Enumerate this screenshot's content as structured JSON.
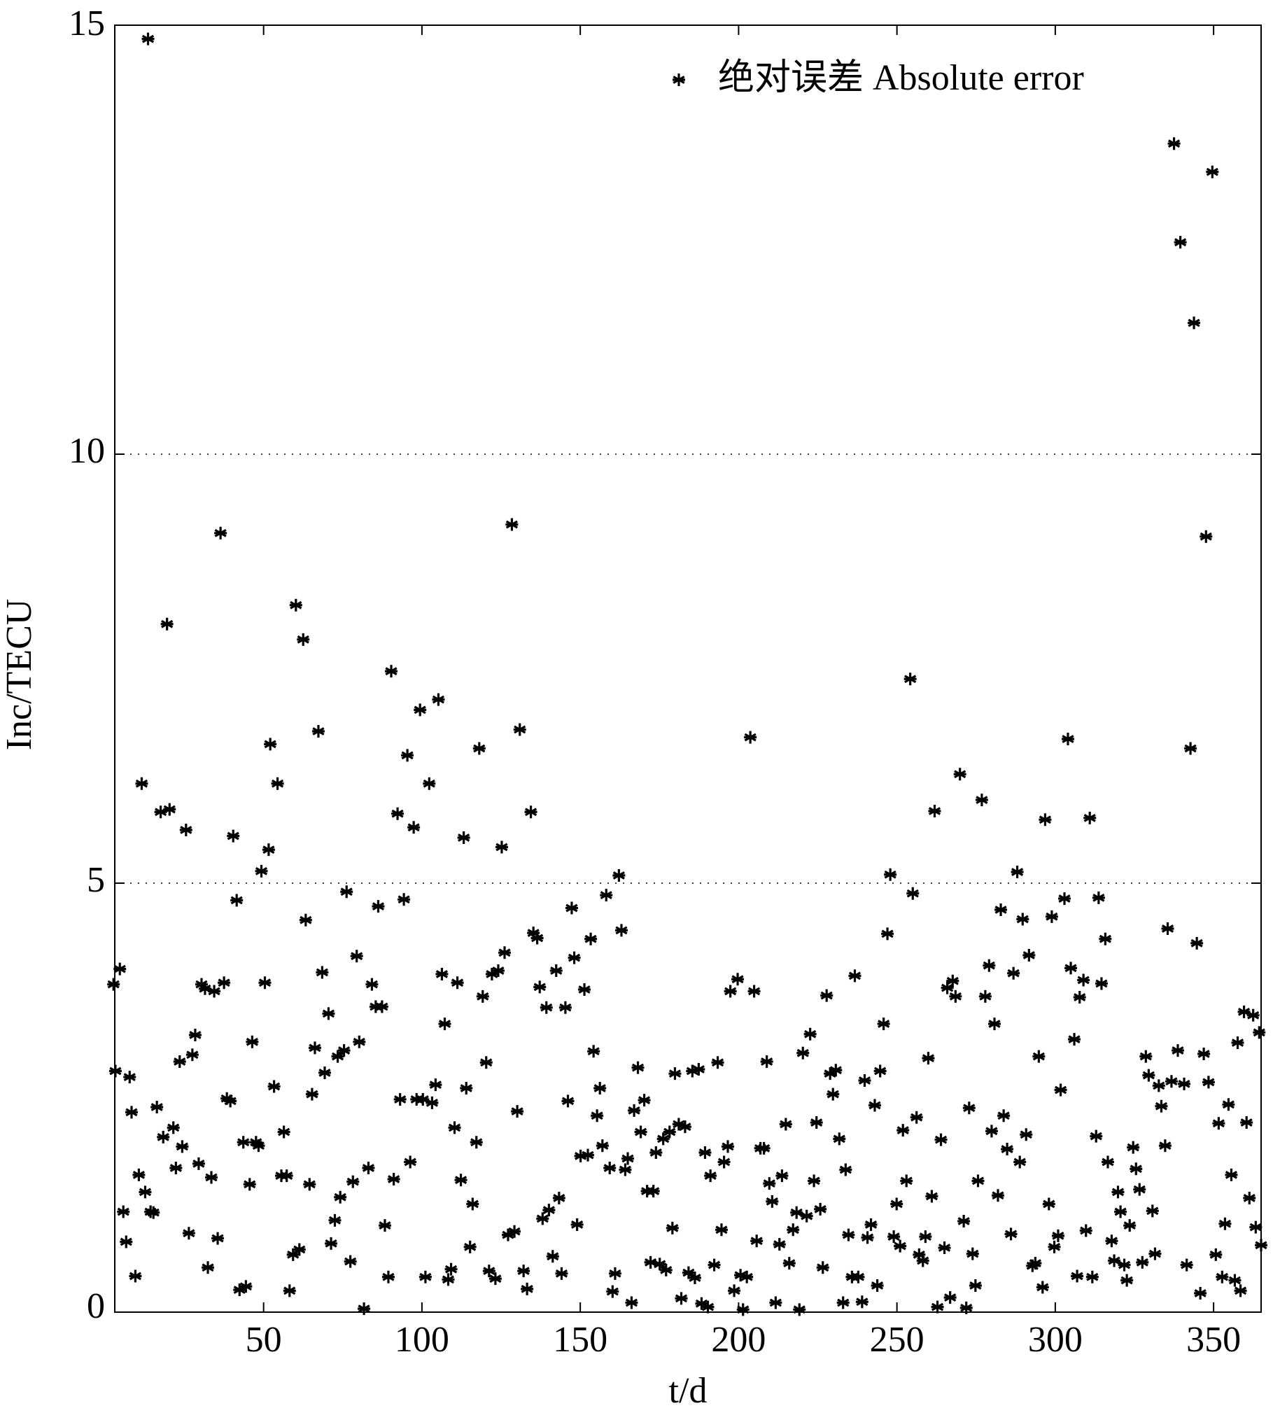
{
  "chart_data": {
    "type": "scatter",
    "x_label": "t/d",
    "y_label": "Inc/TECU",
    "xlim": [
      3,
      365
    ],
    "ylim": [
      0,
      15
    ],
    "xticks": [
      50,
      100,
      150,
      200,
      250,
      300,
      350
    ],
    "yticks": [
      0,
      5,
      10,
      15
    ],
    "grid": "y",
    "legend": "upper right",
    "x": [
      2.6,
      4.6,
      3.2,
      7.7,
      5.7,
      6.6,
      8.3,
      9.5,
      10.6,
      11.5,
      12.6,
      14.3,
      15.2,
      13.5,
      16.3,
      17.5,
      18.3,
      19.5,
      20.3,
      21.5,
      22.3,
      23.5,
      24.3,
      25.5,
      26.4,
      27.5,
      28.4,
      29.5,
      30.4,
      31.5,
      32.4,
      33.5,
      34.4,
      35.5,
      36.4,
      37.5,
      38.4,
      39.5,
      40.4,
      41.5,
      42.4,
      43.6,
      44.4,
      45.6,
      46.4,
      47.6,
      48.4,
      49.3,
      50.4,
      51.6,
      52.1,
      53.3,
      54.4,
      55.6,
      56.4,
      57.3,
      58.2,
      59.3,
      60.2,
      61.3,
      62.5,
      63.3,
      64.5,
      65.3,
      66.2,
      67.3,
      68.5,
      69.3,
      70.5,
      71.3,
      72.5,
      73.4,
      74.2,
      75.4,
      76.2,
      77.4,
      78.2,
      79.4,
      80.2,
      81.7,
      83.1,
      84.2,
      85.4,
      86.2,
      87.4,
      88.3,
      89.4,
      90.3,
      91.1,
      92.3,
      93.1,
      94.3,
      95.4,
      96.3,
      97.4,
      98.3,
      99.4,
      100.3,
      101.1,
      102.3,
      103.2,
      104.3,
      105.2,
      106.3,
      107.2,
      108.3,
      109.2,
      110.3,
      111.2,
      112.3,
      113.2,
      114.0,
      115.2,
      116.0,
      117.2,
      118.1,
      119.2,
      120.3,
      121.2,
      122.1,
      123.2,
      124.1,
      125.2,
      126.1,
      127.2,
      128.4,
      129.2,
      130.1,
      130.9,
      132.1,
      133.2,
      134.4,
      135.2,
      136.4,
      137.2,
      138.1,
      139.3,
      140.1,
      141.3,
      142.4,
      143.3,
      144.1,
      145.3,
      146.1,
      147.3,
      148.1,
      149.0,
      150.1,
      151.3,
      152.4,
      153.3,
      154.2,
      155.3,
      156.2,
      157.0,
      158.2,
      159.3,
      160.2,
      161.0,
      162.2,
      163.0,
      164.2,
      165.0,
      166.2,
      167.0,
      168.2,
      169.1,
      170.2,
      171.1,
      172.2,
      173.1,
      173.9,
      175.1,
      176.2,
      177.1,
      178.2,
      179.1,
      179.9,
      181.1,
      181.9,
      183.1,
      184.2,
      185.4,
      186.2,
      187.4,
      188.3,
      189.4,
      190.3,
      191.1,
      192.3,
      193.4,
      194.6,
      195.4,
      196.6,
      197.4,
      198.6,
      199.7,
      200.6,
      201.4,
      202.6,
      203.7,
      204.9,
      205.7,
      206.9,
      208.0,
      208.9,
      209.7,
      210.6,
      211.7,
      212.9,
      213.7,
      214.9,
      216.0,
      217.2,
      218.3,
      219.2,
      220.3,
      221.5,
      222.6,
      223.8,
      224.6,
      225.8,
      226.6,
      227.8,
      228.9,
      229.8,
      230.7,
      231.8,
      233.0,
      233.8,
      234.7,
      235.8,
      236.7,
      237.8,
      239.0,
      239.8,
      240.7,
      241.8,
      243.0,
      243.8,
      244.7,
      245.8,
      247.0,
      247.9,
      249.0,
      249.9,
      251.0,
      251.9,
      253.0,
      254.2,
      255.0,
      256.2,
      257.0,
      258.2,
      259.0,
      259.9,
      261.0,
      261.9,
      262.8,
      263.9,
      265.0,
      265.9,
      266.8,
      267.6,
      268.5,
      269.9,
      271.1,
      271.9,
      272.8,
      273.9,
      274.8,
      275.6,
      276.8,
      277.9,
      279.1,
      279.9,
      280.8,
      281.9,
      282.8,
      283.7,
      284.8,
      286.0,
      286.8,
      288.0,
      288.8,
      289.7,
      290.8,
      291.7,
      292.8,
      293.7,
      294.8,
      296.0,
      296.8,
      298.0,
      298.9,
      299.7,
      300.9,
      301.7,
      302.9,
      304.0,
      304.9,
      306.0,
      306.9,
      307.7,
      308.9,
      309.7,
      310.9,
      311.7,
      312.9,
      313.7,
      314.6,
      315.8,
      316.6,
      317.8,
      318.6,
      319.8,
      320.6,
      321.8,
      322.6,
      323.5,
      324.6,
      325.5,
      326.6,
      327.5,
      328.6,
      329.5,
      330.7,
      331.5,
      332.7,
      333.5,
      334.7,
      335.5,
      336.7,
      337.5,
      338.7,
      339.5,
      340.7,
      341.5,
      342.7,
      343.8,
      344.7,
      345.8,
      346.9,
      347.6,
      348.4,
      349.6,
      350.7,
      351.6,
      352.7,
      353.6,
      354.7,
      355.6,
      356.7,
      357.6,
      358.5,
      359.6,
      360.4,
      361.3,
      362.5,
      363.3,
      364.4,
      365.0
    ],
    "series": [
      {
        "name": "绝对误差 Absolute error",
        "color": "#000000",
        "values": [
          3.82,
          4.0,
          2.81,
          2.74,
          1.17,
          0.82,
          2.33,
          0.42,
          1.6,
          6.16,
          1.4,
          1.17,
          1.16,
          14.84,
          2.39,
          5.83,
          2.04,
          8.02,
          5.86,
          2.15,
          1.68,
          2.92,
          1.93,
          5.62,
          0.92,
          3.0,
          3.23,
          1.73,
          3.82,
          3.77,
          0.52,
          1.57,
          3.74,
          0.86,
          9.08,
          3.84,
          2.49,
          2.46,
          5.55,
          4.8,
          0.26,
          1.98,
          0.3,
          1.49,
          3.15,
          1.98,
          1.94,
          5.14,
          3.84,
          5.39,
          6.62,
          2.63,
          6.16,
          1.59,
          2.1,
          1.59,
          0.25,
          0.67,
          8.24,
          0.73,
          7.84,
          4.57,
          1.49,
          2.54,
          3.08,
          6.77,
          3.96,
          2.79,
          3.48,
          0.8,
          1.07,
          2.98,
          1.34,
          3.05,
          4.9,
          0.59,
          1.52,
          4.15,
          3.15,
          0.04,
          1.68,
          3.82,
          3.56,
          4.73,
          3.56,
          1.01,
          0.41,
          7.47,
          1.55,
          5.81,
          2.48,
          4.81,
          6.49,
          1.75,
          5.65,
          2.48,
          7.02,
          2.48,
          0.41,
          6.16,
          2.44,
          2.65,
          7.14,
          3.94,
          3.36,
          0.38,
          0.5,
          2.15,
          3.84,
          1.54,
          5.53,
          2.61,
          0.76,
          1.26,
          1.98,
          6.57,
          3.68,
          2.91,
          0.48,
          3.94,
          0.39,
          3.98,
          5.42,
          4.19,
          0.9,
          9.18,
          0.94,
          2.34,
          6.79,
          0.48,
          0.27,
          5.83,
          4.42,
          4.36,
          3.79,
          1.09,
          3.55,
          1.19,
          0.65,
          3.98,
          1.33,
          0.45,
          3.55,
          2.46,
          4.71,
          4.13,
          1.02,
          1.82,
          3.76,
          1.83,
          4.35,
          3.04,
          2.29,
          2.61,
          1.94,
          4.86,
          1.68,
          0.24,
          0.45,
          5.09,
          4.45,
          1.66,
          1.79,
          0.11,
          2.35,
          2.85,
          2.1,
          2.47,
          1.41,
          0.58,
          1.41,
          1.86,
          0.56,
          2.02,
          0.49,
          2.1,
          0.98,
          2.78,
          2.19,
          0.16,
          2.16,
          0.46,
          2.81,
          0.4,
          2.83,
          0.1,
          1.86,
          0.06,
          1.59,
          0.55,
          2.91,
          0.96,
          1.75,
          1.93,
          3.74,
          0.25,
          3.88,
          0.43,
          0.03,
          0.41,
          6.7,
          3.74,
          0.83,
          1.91,
          1.91,
          2.92,
          1.5,
          1.29,
          0.11,
          0.79,
          1.59,
          2.19,
          0.57,
          0.96,
          1.16,
          0.03,
          3.02,
          1.12,
          3.24,
          1.53,
          2.21,
          1.2,
          0.52,
          3.69,
          2.78,
          2.54,
          2.82,
          2.02,
          0.11,
          1.66,
          0.9,
          0.41,
          3.92,
          0.41,
          0.12,
          2.7,
          0.87,
          1.02,
          2.41,
          0.31,
          2.81,
          3.36,
          4.41,
          5.1,
          0.88,
          1.26,
          0.77,
          2.12,
          1.53,
          7.38,
          4.88,
          2.27,
          0.67,
          0.6,
          0.88,
          2.96,
          1.35,
          5.84,
          0.06,
          2.01,
          0.75,
          3.78,
          0.17,
          3.86,
          3.68,
          6.27,
          1.06,
          0.05,
          2.38,
          0.68,
          0.31,
          1.53,
          5.97,
          3.68,
          4.04,
          2.11,
          3.36,
          1.36,
          4.69,
          2.29,
          1.9,
          0.91,
          3.95,
          5.13,
          1.75,
          4.58,
          2.07,
          4.16,
          0.54,
          0.57,
          2.98,
          0.29,
          5.74,
          1.26,
          4.61,
          0.76,
          0.89,
          2.59,
          4.82,
          6.68,
          4.01,
          3.18,
          0.42,
          3.67,
          3.87,
          0.95,
          5.76,
          0.41,
          2.05,
          4.83,
          3.83,
          4.35,
          1.75,
          0.83,
          0.6,
          1.4,
          1.17,
          0.55,
          0.37,
          1.01,
          1.92,
          1.67,
          1.43,
          0.58,
          2.98,
          2.76,
          1.18,
          0.68,
          2.64,
          2.4,
          1.94,
          4.47,
          2.69,
          13.62,
          3.05,
          12.47,
          2.66,
          0.55,
          6.57,
          11.53,
          4.3,
          0.22,
          3.01,
          9.04,
          2.68,
          13.29,
          0.67,
          2.2,
          0.41,
          1.03,
          2.42,
          1.6,
          0.37,
          3.14,
          0.25,
          3.5,
          2.21,
          1.33,
          3.46,
          0.99,
          3.26,
          0.78
        ]
      }
    ]
  }
}
